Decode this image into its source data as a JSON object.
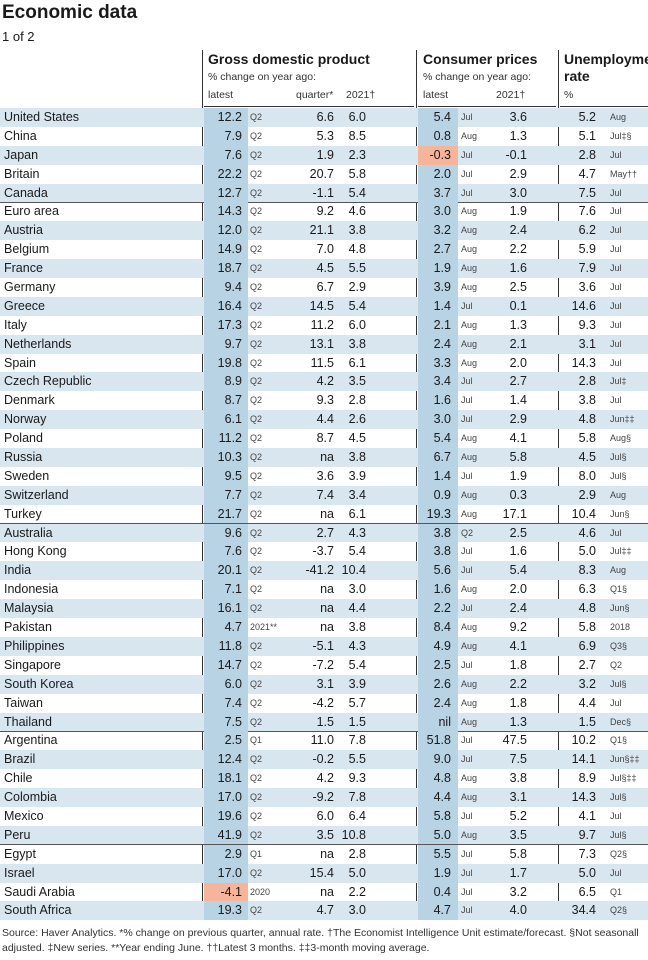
{
  "title": "Economic data",
  "subtitle": "1 of 2",
  "headers": {
    "gdp": {
      "title": "Gross domestic product",
      "sub": "% change on year ago:",
      "col1": "latest",
      "col2": "quarter*",
      "col3": "2021†"
    },
    "cpi": {
      "title": "Consumer prices",
      "sub": "% change on year ago:",
      "col1": "latest",
      "col2": "2021†"
    },
    "unemp": {
      "title1": "Unemployme",
      "title2": "rate",
      "sub": "%"
    }
  },
  "rows": [
    {
      "country": "United States",
      "gdp": "12.2",
      "gdp_p": "Q2",
      "qtr": "6.6",
      "g21": "6.0",
      "cpi": "5.4",
      "cpi_p": "Jul",
      "c21": "3.6",
      "un": "5.2",
      "un_p": "Aug"
    },
    {
      "country": "China",
      "gdp": "7.9",
      "gdp_p": "Q2",
      "qtr": "5.3",
      "g21": "8.5",
      "cpi": "0.8",
      "cpi_p": "Aug",
      "c21": "1.3",
      "un": "5.1",
      "un_p": "Jul‡§"
    },
    {
      "country": "Japan",
      "gdp": "7.6",
      "gdp_p": "Q2",
      "qtr": "1.9",
      "g21": "2.3",
      "cpi": "-0.3",
      "cpi_p": "Jul",
      "c21": "-0.1",
      "un": "2.8",
      "un_p": "Jul",
      "cpi_neg": true
    },
    {
      "country": "Britain",
      "gdp": "22.2",
      "gdp_p": "Q2",
      "qtr": "20.7",
      "g21": "5.8",
      "cpi": "2.0",
      "cpi_p": "Jul",
      "c21": "2.9",
      "un": "4.7",
      "un_p": "May††"
    },
    {
      "country": "Canada",
      "gdp": "12.7",
      "gdp_p": "Q2",
      "qtr": "-1.1",
      "g21": "5.4",
      "cpi": "3.7",
      "cpi_p": "Jul",
      "c21": "3.0",
      "un": "7.5",
      "un_p": "Jul",
      "group_end": true
    },
    {
      "country": "Euro area",
      "gdp": "14.3",
      "gdp_p": "Q2",
      "qtr": "9.2",
      "g21": "4.6",
      "cpi": "3.0",
      "cpi_p": "Aug",
      "c21": "1.9",
      "un": "7.6",
      "un_p": "Jul"
    },
    {
      "country": "Austria",
      "gdp": "12.0",
      "gdp_p": "Q2",
      "qtr": "21.1",
      "g21": "3.8",
      "cpi": "3.2",
      "cpi_p": "Aug",
      "c21": "2.4",
      "un": "6.2",
      "un_p": "Jul"
    },
    {
      "country": "Belgium",
      "gdp": "14.9",
      "gdp_p": "Q2",
      "qtr": "7.0",
      "g21": "4.8",
      "cpi": "2.7",
      "cpi_p": "Aug",
      "c21": "2.2",
      "un": "5.9",
      "un_p": "Jul"
    },
    {
      "country": "France",
      "gdp": "18.7",
      "gdp_p": "Q2",
      "qtr": "4.5",
      "g21": "5.5",
      "cpi": "1.9",
      "cpi_p": "Aug",
      "c21": "1.6",
      "un": "7.9",
      "un_p": "Jul"
    },
    {
      "country": "Germany",
      "gdp": "9.4",
      "gdp_p": "Q2",
      "qtr": "6.7",
      "g21": "2.9",
      "cpi": "3.9",
      "cpi_p": "Aug",
      "c21": "2.5",
      "un": "3.6",
      "un_p": "Jul"
    },
    {
      "country": "Greece",
      "gdp": "16.4",
      "gdp_p": "Q2",
      "qtr": "14.5",
      "g21": "5.4",
      "cpi": "1.4",
      "cpi_p": "Jul",
      "c21": "0.1",
      "un": "14.6",
      "un_p": "Jul"
    },
    {
      "country": "Italy",
      "gdp": "17.3",
      "gdp_p": "Q2",
      "qtr": "11.2",
      "g21": "6.0",
      "cpi": "2.1",
      "cpi_p": "Aug",
      "c21": "1.3",
      "un": "9.3",
      "un_p": "Jul"
    },
    {
      "country": "Netherlands",
      "gdp": "9.7",
      "gdp_p": "Q2",
      "qtr": "13.1",
      "g21": "3.8",
      "cpi": "2.4",
      "cpi_p": "Aug",
      "c21": "2.1",
      "un": "3.1",
      "un_p": "Jul"
    },
    {
      "country": "Spain",
      "gdp": "19.8",
      "gdp_p": "Q2",
      "qtr": "11.5",
      "g21": "6.1",
      "cpi": "3.3",
      "cpi_p": "Aug",
      "c21": "2.0",
      "un": "14.3",
      "un_p": "Jul",
      "group_end": true
    },
    {
      "country": "Czech Republic",
      "gdp": "8.9",
      "gdp_p": "Q2",
      "qtr": "4.2",
      "g21": "3.5",
      "cpi": "3.4",
      "cpi_p": "Jul",
      "c21": "2.7",
      "un": "2.8",
      "un_p": "Jul‡"
    },
    {
      "country": "Denmark",
      "gdp": "8.7",
      "gdp_p": "Q2",
      "qtr": "9.3",
      "g21": "2.8",
      "cpi": "1.6",
      "cpi_p": "Jul",
      "c21": "1.4",
      "un": "3.8",
      "un_p": "Jul"
    },
    {
      "country": "Norway",
      "gdp": "6.1",
      "gdp_p": "Q2",
      "qtr": "4.4",
      "g21": "2.6",
      "cpi": "3.0",
      "cpi_p": "Jul",
      "c21": "2.9",
      "un": "4.8",
      "un_p": "Jun‡‡"
    },
    {
      "country": "Poland",
      "gdp": "11.2",
      "gdp_p": "Q2",
      "qtr": "8.7",
      "g21": "4.5",
      "cpi": "5.4",
      "cpi_p": "Aug",
      "c21": "4.1",
      "un": "5.8",
      "un_p": "Aug§"
    },
    {
      "country": "Russia",
      "gdp": "10.3",
      "gdp_p": "Q2",
      "qtr": "na",
      "g21": "3.8",
      "cpi": "6.7",
      "cpi_p": "Aug",
      "c21": "5.8",
      "un": "4.5",
      "un_p": "Jul§"
    },
    {
      "country": "Sweden",
      "gdp": "9.5",
      "gdp_p": "Q2",
      "qtr": "3.6",
      "g21": "3.9",
      "cpi": "1.4",
      "cpi_p": "Jul",
      "c21": "1.9",
      "un": "8.0",
      "un_p": "Jul§"
    },
    {
      "country": "Switzerland",
      "gdp": "7.7",
      "gdp_p": "Q2",
      "qtr": "7.4",
      "g21": "3.4",
      "cpi": "0.9",
      "cpi_p": "Aug",
      "c21": "0.3",
      "un": "2.9",
      "un_p": "Aug"
    },
    {
      "country": "Turkey",
      "gdp": "21.7",
      "gdp_p": "Q2",
      "qtr": "na",
      "g21": "6.1",
      "cpi": "19.3",
      "cpi_p": "Aug",
      "c21": "17.1",
      "un": "10.4",
      "un_p": "Jun§",
      "group_end": true
    },
    {
      "country": "Australia",
      "gdp": "9.6",
      "gdp_p": "Q2",
      "qtr": "2.7",
      "g21": "4.3",
      "cpi": "3.8",
      "cpi_p": "Q2",
      "c21": "2.5",
      "un": "4.6",
      "un_p": "Jul"
    },
    {
      "country": "Hong Kong",
      "gdp": "7.6",
      "gdp_p": "Q2",
      "qtr": "-3.7",
      "g21": "5.4",
      "cpi": "3.8",
      "cpi_p": "Jul",
      "c21": "1.6",
      "un": "5.0",
      "un_p": "Jul‡‡"
    },
    {
      "country": "India",
      "gdp": "20.1",
      "gdp_p": "Q2",
      "qtr": "-41.2",
      "g21": "10.4",
      "cpi": "5.6",
      "cpi_p": "Jul",
      "c21": "5.4",
      "un": "8.3",
      "un_p": "Aug"
    },
    {
      "country": "Indonesia",
      "gdp": "7.1",
      "gdp_p": "Q2",
      "qtr": "na",
      "g21": "3.0",
      "cpi": "1.6",
      "cpi_p": "Aug",
      "c21": "2.0",
      "un": "6.3",
      "un_p": "Q1§"
    },
    {
      "country": "Malaysia",
      "gdp": "16.1",
      "gdp_p": "Q2",
      "qtr": "na",
      "g21": "4.4",
      "cpi": "2.2",
      "cpi_p": "Jul",
      "c21": "2.4",
      "un": "4.8",
      "un_p": "Jun§"
    },
    {
      "country": "Pakistan",
      "gdp": "4.7",
      "gdp_p": "2021**",
      "qtr": "na",
      "g21": "3.8",
      "cpi": "8.4",
      "cpi_p": "Aug",
      "c21": "9.2",
      "un": "5.8",
      "un_p": "2018"
    },
    {
      "country": "Philippines",
      "gdp": "11.8",
      "gdp_p": "Q2",
      "qtr": "-5.1",
      "g21": "4.3",
      "cpi": "4.9",
      "cpi_p": "Aug",
      "c21": "4.1",
      "un": "6.9",
      "un_p": "Q3§"
    },
    {
      "country": "Singapore",
      "gdp": "14.7",
      "gdp_p": "Q2",
      "qtr": "-7.2",
      "g21": "5.4",
      "cpi": "2.5",
      "cpi_p": "Jul",
      "c21": "1.8",
      "un": "2.7",
      "un_p": "Q2"
    },
    {
      "country": "South Korea",
      "gdp": "6.0",
      "gdp_p": "Q2",
      "qtr": "3.1",
      "g21": "3.9",
      "cpi": "2.6",
      "cpi_p": "Aug",
      "c21": "2.2",
      "un": "3.2",
      "un_p": "Jul§"
    },
    {
      "country": "Taiwan",
      "gdp": "7.4",
      "gdp_p": "Q2",
      "qtr": "-4.2",
      "g21": "5.7",
      "cpi": "2.4",
      "cpi_p": "Aug",
      "c21": "1.8",
      "un": "4.4",
      "un_p": "Jul"
    },
    {
      "country": "Thailand",
      "gdp": "7.5",
      "gdp_p": "Q2",
      "qtr": "1.5",
      "g21": "1.5",
      "cpi": "nil",
      "cpi_p": "Aug",
      "c21": "1.3",
      "un": "1.5",
      "un_p": "Dec§",
      "group_end": true
    },
    {
      "country": "Argentina",
      "gdp": "2.5",
      "gdp_p": "Q1",
      "qtr": "11.0",
      "g21": "7.8",
      "cpi": "51.8",
      "cpi_p": "Jul",
      "c21": "47.5",
      "un": "10.2",
      "un_p": "Q1§"
    },
    {
      "country": "Brazil",
      "gdp": "12.4",
      "gdp_p": "Q2",
      "qtr": "-0.2",
      "g21": "5.5",
      "cpi": "9.0",
      "cpi_p": "Jul",
      "c21": "7.5",
      "un": "14.1",
      "un_p": "Jun§‡‡"
    },
    {
      "country": "Chile",
      "gdp": "18.1",
      "gdp_p": "Q2",
      "qtr": "4.2",
      "g21": "9.3",
      "cpi": "4.8",
      "cpi_p": "Aug",
      "c21": "3.8",
      "un": "8.9",
      "un_p": "Jul§‡‡"
    },
    {
      "country": "Colombia",
      "gdp": "17.0",
      "gdp_p": "Q2",
      "qtr": "-9.2",
      "g21": "7.8",
      "cpi": "4.4",
      "cpi_p": "Aug",
      "c21": "3.1",
      "un": "14.3",
      "un_p": "Jul§"
    },
    {
      "country": "Mexico",
      "gdp": "19.6",
      "gdp_p": "Q2",
      "qtr": "6.0",
      "g21": "6.4",
      "cpi": "5.8",
      "cpi_p": "Jul",
      "c21": "5.2",
      "un": "4.1",
      "un_p": "Jul"
    },
    {
      "country": "Peru",
      "gdp": "41.9",
      "gdp_p": "Q2",
      "qtr": "3.5",
      "g21": "10.8",
      "cpi": "5.0",
      "cpi_p": "Aug",
      "c21": "3.5",
      "un": "9.7",
      "un_p": "Jul§",
      "group_end": true
    },
    {
      "country": "Egypt",
      "gdp": "2.9",
      "gdp_p": "Q1",
      "qtr": "na",
      "g21": "2.8",
      "cpi": "5.5",
      "cpi_p": "Jul",
      "c21": "5.8",
      "un": "7.3",
      "un_p": "Q2§"
    },
    {
      "country": "Israel",
      "gdp": "17.0",
      "gdp_p": "Q2",
      "qtr": "15.4",
      "g21": "5.0",
      "cpi": "1.9",
      "cpi_p": "Jul",
      "c21": "1.7",
      "un": "5.0",
      "un_p": "Jul"
    },
    {
      "country": "Saudi Arabia",
      "gdp": "-4.1",
      "gdp_p": "2020",
      "qtr": "na",
      "g21": "2.2",
      "cpi": "0.4",
      "cpi_p": "Jul",
      "c21": "3.2",
      "un": "6.5",
      "un_p": "Q1",
      "gdp_neg": true
    },
    {
      "country": "South Africa",
      "gdp": "19.3",
      "gdp_p": "Q2",
      "qtr": "4.7",
      "g21": "3.0",
      "cpi": "4.7",
      "cpi_p": "Jul",
      "c21": "4.0",
      "un": "34.4",
      "un_p": "Q2§"
    }
  ],
  "footer": {
    "line1": "Source: Haver Analytics.  *% change on previous quarter, annual rate. †The Economist Intelligence Unit estimate/forecast. §Not seasonall",
    "line2": "adjusted. ‡New series. **Year ending June. ††Latest 3 months. ‡‡3-month moving average."
  },
  "colors": {
    "stripe": "#d7e6ef",
    "shade": "#b7d3e4",
    "negative": "#f6b49b"
  }
}
